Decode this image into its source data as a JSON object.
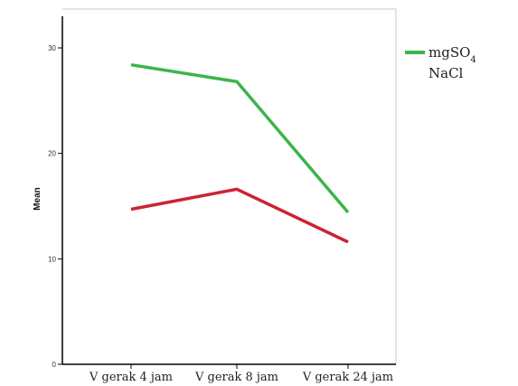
{
  "chart_data": {
    "type": "line",
    "title": "",
    "xlabel": "",
    "ylabel": "Mean",
    "categories": [
      "V gerak 4 jam",
      "V gerak 8 jam",
      "V gerak 24 jam"
    ],
    "ylim": [
      0,
      33
    ],
    "yticks": [
      0,
      10,
      20,
      30
    ],
    "grid": false,
    "legend_position": "top-right",
    "series": [
      {
        "name": "mgSO4",
        "name_main": "mgSO",
        "name_sub": "4",
        "color": "#3bb54a",
        "values": [
          28.4,
          26.8,
          14.4
        ]
      },
      {
        "name": "NaCl",
        "color": "#cc2233",
        "values": [
          14.7,
          16.6,
          11.6
        ]
      }
    ]
  }
}
